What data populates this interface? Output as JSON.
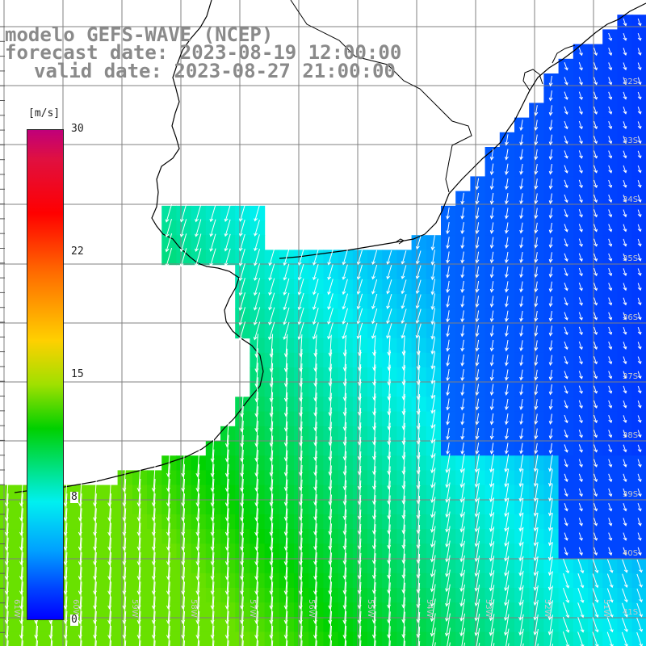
{
  "title": {
    "model": "modelo GEFS-WAVE (NCEP)",
    "forecast": "forecast date: 2023-08-19 12:00:00",
    "valid": "valid date: 2023-08-27 21:00:00"
  },
  "colorbar": {
    "unit": "[m/s]",
    "ticks": [
      "30",
      "22",
      "15",
      "8",
      "0"
    ],
    "range": [
      0,
      30
    ]
  },
  "lat_labels": [
    "32S",
    "33S",
    "34S",
    "35S",
    "36S",
    "37S",
    "38S",
    "39S",
    "40S",
    "41S"
  ],
  "lon_labels": [
    "61W",
    "60W",
    "59W",
    "58W",
    "57W",
    "56W",
    "55W",
    "54W",
    "53W",
    "52W",
    "51W"
  ],
  "colors": {
    "land": "#ffffff",
    "grid": "#808080",
    "coast": "#000000",
    "arrow": "#ffffff"
  }
}
